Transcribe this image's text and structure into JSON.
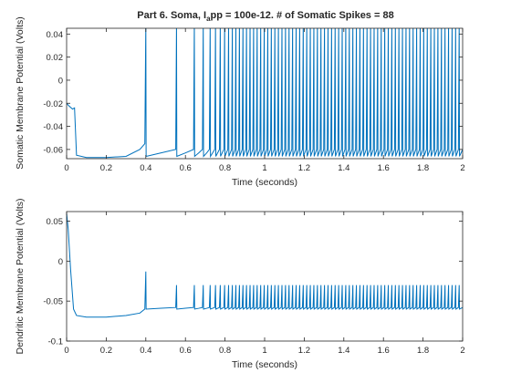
{
  "figure": {
    "title_prefix": "Part 6. Soma, I",
    "title_sub": "a",
    "title_suffix": "pp = 100e-12. # of Somatic Spikes = 88"
  },
  "chart_data": [
    {
      "type": "line",
      "title": "Part 6. Soma, I_app = 100e-12. # of Somatic Spikes = 88",
      "xlabel": "Time (seconds)",
      "ylabel": "Somatic Membrane Potential (Volts)",
      "xlim": [
        0,
        2
      ],
      "ylim": [
        -0.068,
        0.045
      ],
      "xticks": [
        0,
        0.2,
        0.4,
        0.6,
        0.8,
        1,
        1.2,
        1.4,
        1.6,
        1.8,
        2
      ],
      "xtick_labels": [
        "0",
        "0.2",
        "0.4",
        "0.6",
        "0.8",
        "1",
        "1.2",
        "1.4",
        "1.6",
        "1.8",
        "2"
      ],
      "yticks": [
        -0.06,
        -0.04,
        -0.02,
        0,
        0.02,
        0.04
      ],
      "ytick_labels": [
        "-0.06",
        "-0.04",
        "-0.02",
        "0",
        "0.02",
        "0.04"
      ],
      "grid": false,
      "line_color": "#0072BD",
      "spike_count": 88,
      "series": [
        {
          "x": [
            0,
            0.01,
            0.03,
            0.04,
            0.05,
            0.1,
            0.2,
            0.3,
            0.37,
            0.395,
            0.4
          ],
          "y": [
            -0.02,
            -0.022,
            -0.025,
            -0.024,
            -0.065,
            -0.067,
            -0.067,
            -0.066,
            -0.06,
            -0.055,
            0.05
          ]
        }
      ],
      "spikes": {
        "times": [
          0.4,
          0.555,
          0.645,
          0.69,
          0.725,
          0.752,
          0.776,
          0.798,
          0.818,
          0.837
        ],
        "regular_interval": 0.0179,
        "end_time": 2.0,
        "peak": 0.05,
        "trough": -0.066,
        "baseline": -0.06,
        "first_peak": 0.05
      }
    },
    {
      "type": "line",
      "xlabel": "Time (seconds)",
      "ylabel": "Dendritic Membrane Potential (Volts)",
      "xlim": [
        0,
        2
      ],
      "ylim": [
        -0.1,
        0.062
      ],
      "xticks": [
        0,
        0.2,
        0.4,
        0.6,
        0.8,
        1,
        1.2,
        1.4,
        1.6,
        1.8,
        2
      ],
      "xtick_labels": [
        "0",
        "0.2",
        "0.4",
        "0.6",
        "0.8",
        "1",
        "1.2",
        "1.4",
        "1.6",
        "1.8",
        "2"
      ],
      "yticks": [
        -0.1,
        -0.05,
        0,
        0.05
      ],
      "ytick_labels": [
        "-0.1",
        "-0.05",
        "0",
        "0.05"
      ],
      "grid": false,
      "line_color": "#0072BD",
      "series": [
        {
          "x": [
            0,
            0.008,
            0.02,
            0.035,
            0.05,
            0.1,
            0.2,
            0.3,
            0.37,
            0.395,
            0.4
          ],
          "y": [
            0.06,
            0.04,
            -0.01,
            -0.06,
            -0.068,
            -0.07,
            -0.07,
            -0.068,
            -0.065,
            -0.06,
            -0.013
          ]
        }
      ],
      "spikes": {
        "times": [
          0.4,
          0.555,
          0.645,
          0.69,
          0.725,
          0.752,
          0.776,
          0.798,
          0.818,
          0.837
        ],
        "regular_interval": 0.0179,
        "end_time": 2.0,
        "peak": -0.03,
        "trough": -0.06,
        "baseline": -0.058,
        "first_peak": -0.013
      }
    }
  ]
}
